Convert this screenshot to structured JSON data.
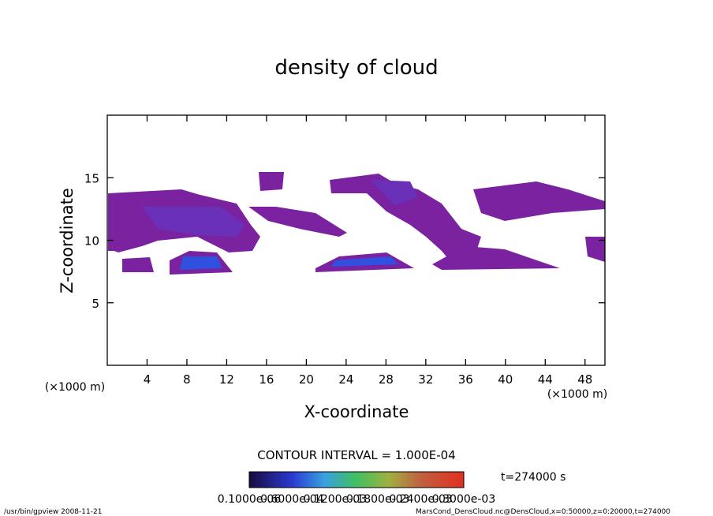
{
  "chart_data": {
    "type": "contour",
    "title": "density of cloud",
    "x_label": "X-coordinate",
    "y_label": "Z-coordinate",
    "x_unit": "(×1000 m)",
    "y_unit": "(×1000 m)",
    "xlim": [
      0,
      50
    ],
    "ylim": [
      0,
      20
    ],
    "xticks": [
      4,
      8,
      12,
      16,
      20,
      24,
      28,
      32,
      36,
      40,
      44,
      48
    ],
    "yticks": [
      5,
      10,
      15
    ],
    "contour_interval": "CONTOUR INTERVAL = 1.000E-04",
    "time_label": "t=274000 s",
    "colorbar_labels": [
      "0.1000e-06",
      "0.6000e-04",
      "0.1200e-03",
      "0.1800e-03",
      "0.2400e-03",
      "0.3000e-03"
    ],
    "footer_left": "/usr/bin/gpview  2008-11-21",
    "footer_right": "MarsCond_DensCloud.nc@DensCloud,x=0:50000,z=0:20000,t=274000"
  }
}
